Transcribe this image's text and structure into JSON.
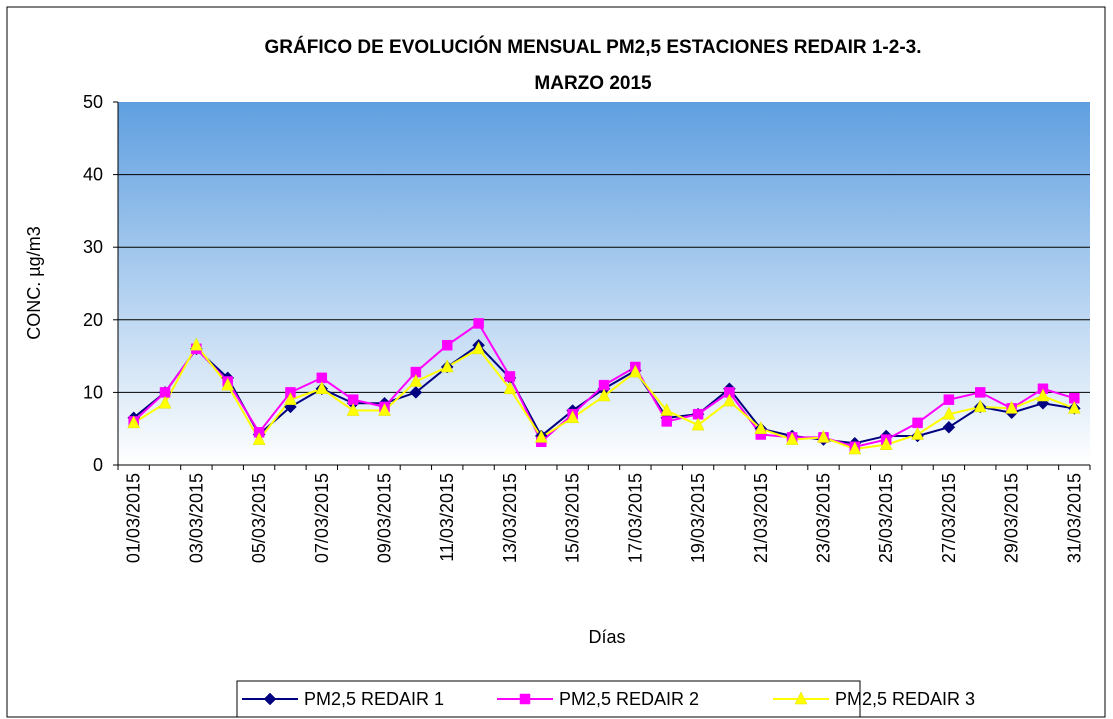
{
  "chart_data": {
    "type": "line",
    "title_lines": [
      "GRÁFICO DE EVOLUCIÓN MENSUAL PM2,5 ESTACIONES REDAIR 1-2-3.",
      "MARZO 2015"
    ],
    "x_label": "Días",
    "y_label": "CONC. µg/m3",
    "categories": [
      "01/03/2015",
      null,
      "03/03/2015",
      null,
      "05/03/2015",
      null,
      "07/03/2015",
      null,
      "09/03/2015",
      null,
      "11/03/2015",
      null,
      "13/03/2015",
      null,
      "15/03/2015",
      null,
      "17/03/2015",
      null,
      "19/03/2015",
      null,
      "21/03/2015",
      null,
      "23/03/2015",
      null,
      "25/03/2015",
      null,
      "27/03/2015",
      null,
      "29/03/2015",
      null,
      "31/03/2015"
    ],
    "series": [
      {
        "name": "PM2,5 REDAIR 1",
        "color": "#000080",
        "marker": "diamond",
        "values": [
          6.5,
          10,
          16,
          12,
          4.2,
          8,
          10.5,
          8.5,
          8.5,
          10,
          13.5,
          16.5,
          12,
          4,
          7.5,
          10.5,
          13,
          6.5,
          7,
          10.5,
          5,
          4,
          3.5,
          3,
          4,
          4,
          5.2,
          8,
          7.2,
          8.5,
          7.8
        ]
      },
      {
        "name": "PM2,5 REDAIR 2",
        "color": "#ff00ff",
        "marker": "square",
        "values": [
          6,
          10,
          16,
          11.5,
          4.5,
          10,
          12,
          9,
          8,
          12.8,
          16.5,
          19.5,
          12.2,
          3.2,
          7,
          11,
          13.5,
          6,
          7,
          10,
          4.2,
          3.8,
          3.8,
          2.5,
          3.5,
          5.8,
          9,
          10,
          7.8,
          10.5,
          9.2
        ]
      },
      {
        "name": "PM2,5 REDAIR 3",
        "color": "#ffff00",
        "marker": "triangle",
        "values": [
          5.8,
          8.5,
          16.5,
          11,
          3.5,
          9,
          10.5,
          7.5,
          7.5,
          11.5,
          13.5,
          16,
          10.5,
          3.8,
          6.5,
          9.5,
          12.8,
          7.5,
          5.5,
          8.8,
          5,
          3.5,
          3.8,
          2.2,
          2.8,
          4.2,
          7,
          8,
          7.8,
          9.5,
          7.8
        ]
      }
    ],
    "ylim": [
      0,
      50
    ],
    "yticks": [
      0,
      10,
      20,
      30,
      40,
      50
    ],
    "grid": true,
    "legend": "bottom"
  }
}
